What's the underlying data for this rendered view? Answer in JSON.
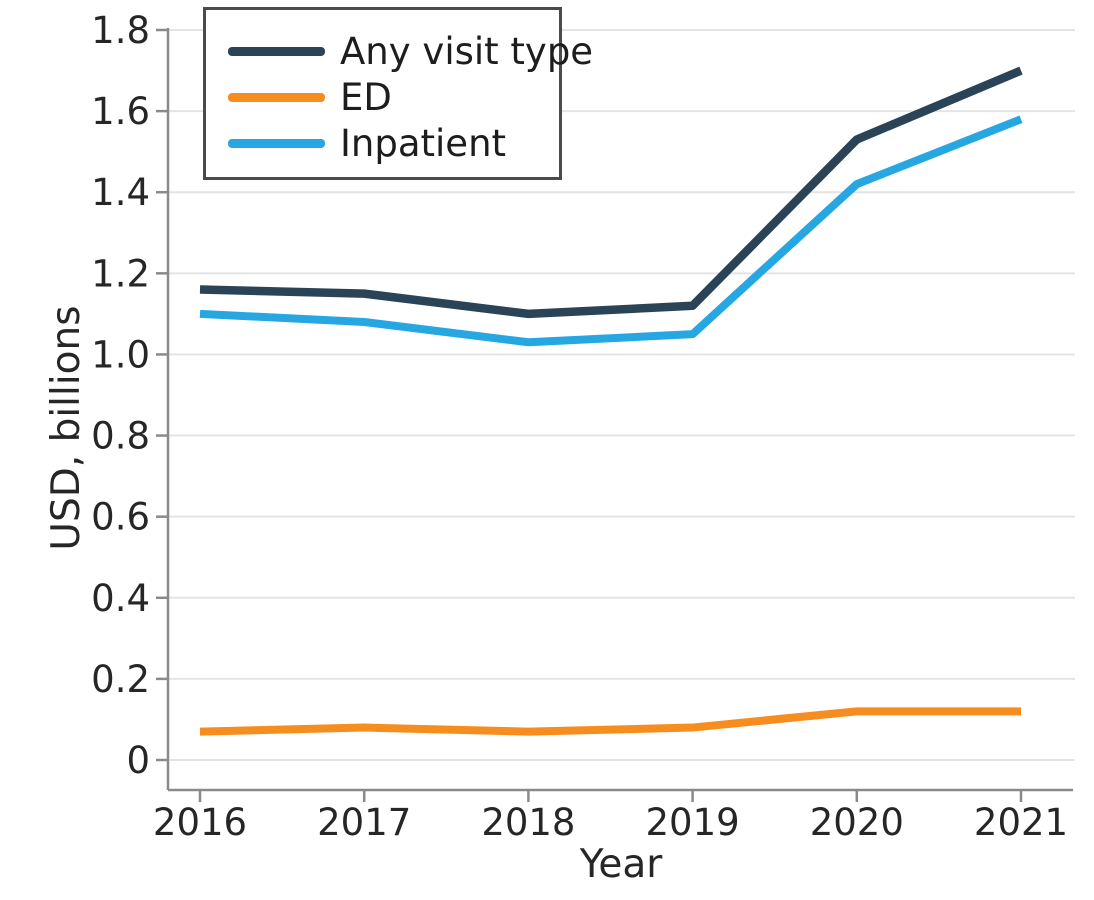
{
  "chart_data": {
    "type": "line",
    "title": "",
    "xlabel": "Year",
    "ylabel": "USD, billions",
    "x": [
      2016,
      2017,
      2018,
      2019,
      2020,
      2021
    ],
    "x_tick_labels": [
      "2016",
      "2017",
      "2018",
      "2019",
      "2020",
      "2021"
    ],
    "ylim": [
      0,
      1.8
    ],
    "y_ticks": [
      0,
      0.2,
      0.4,
      0.6,
      0.8,
      1.0,
      1.2,
      1.4,
      1.6,
      1.8
    ],
    "y_tick_labels": [
      "0",
      "0.2",
      "0.4",
      "0.6",
      "0.8",
      "1.0",
      "1.2",
      "1.4",
      "1.6",
      "1.8"
    ],
    "grid": "horizontal",
    "legend_position": "top-left",
    "series": [
      {
        "name": "Any visit type",
        "color": "#2b4356",
        "values": [
          1.16,
          1.15,
          1.1,
          1.12,
          1.53,
          1.7
        ]
      },
      {
        "name": "ED",
        "color": "#f68d1e",
        "values": [
          0.07,
          0.08,
          0.07,
          0.08,
          0.12,
          0.12
        ]
      },
      {
        "name": "Inpatient",
        "color": "#27a7e1",
        "values": [
          1.1,
          1.08,
          1.03,
          1.05,
          1.42,
          1.58
        ]
      }
    ],
    "colors": {
      "grid": "#e4e4e4",
      "axis": "#8a8a8a",
      "text": "#262626",
      "legend_border": "#4b4b4b"
    }
  }
}
